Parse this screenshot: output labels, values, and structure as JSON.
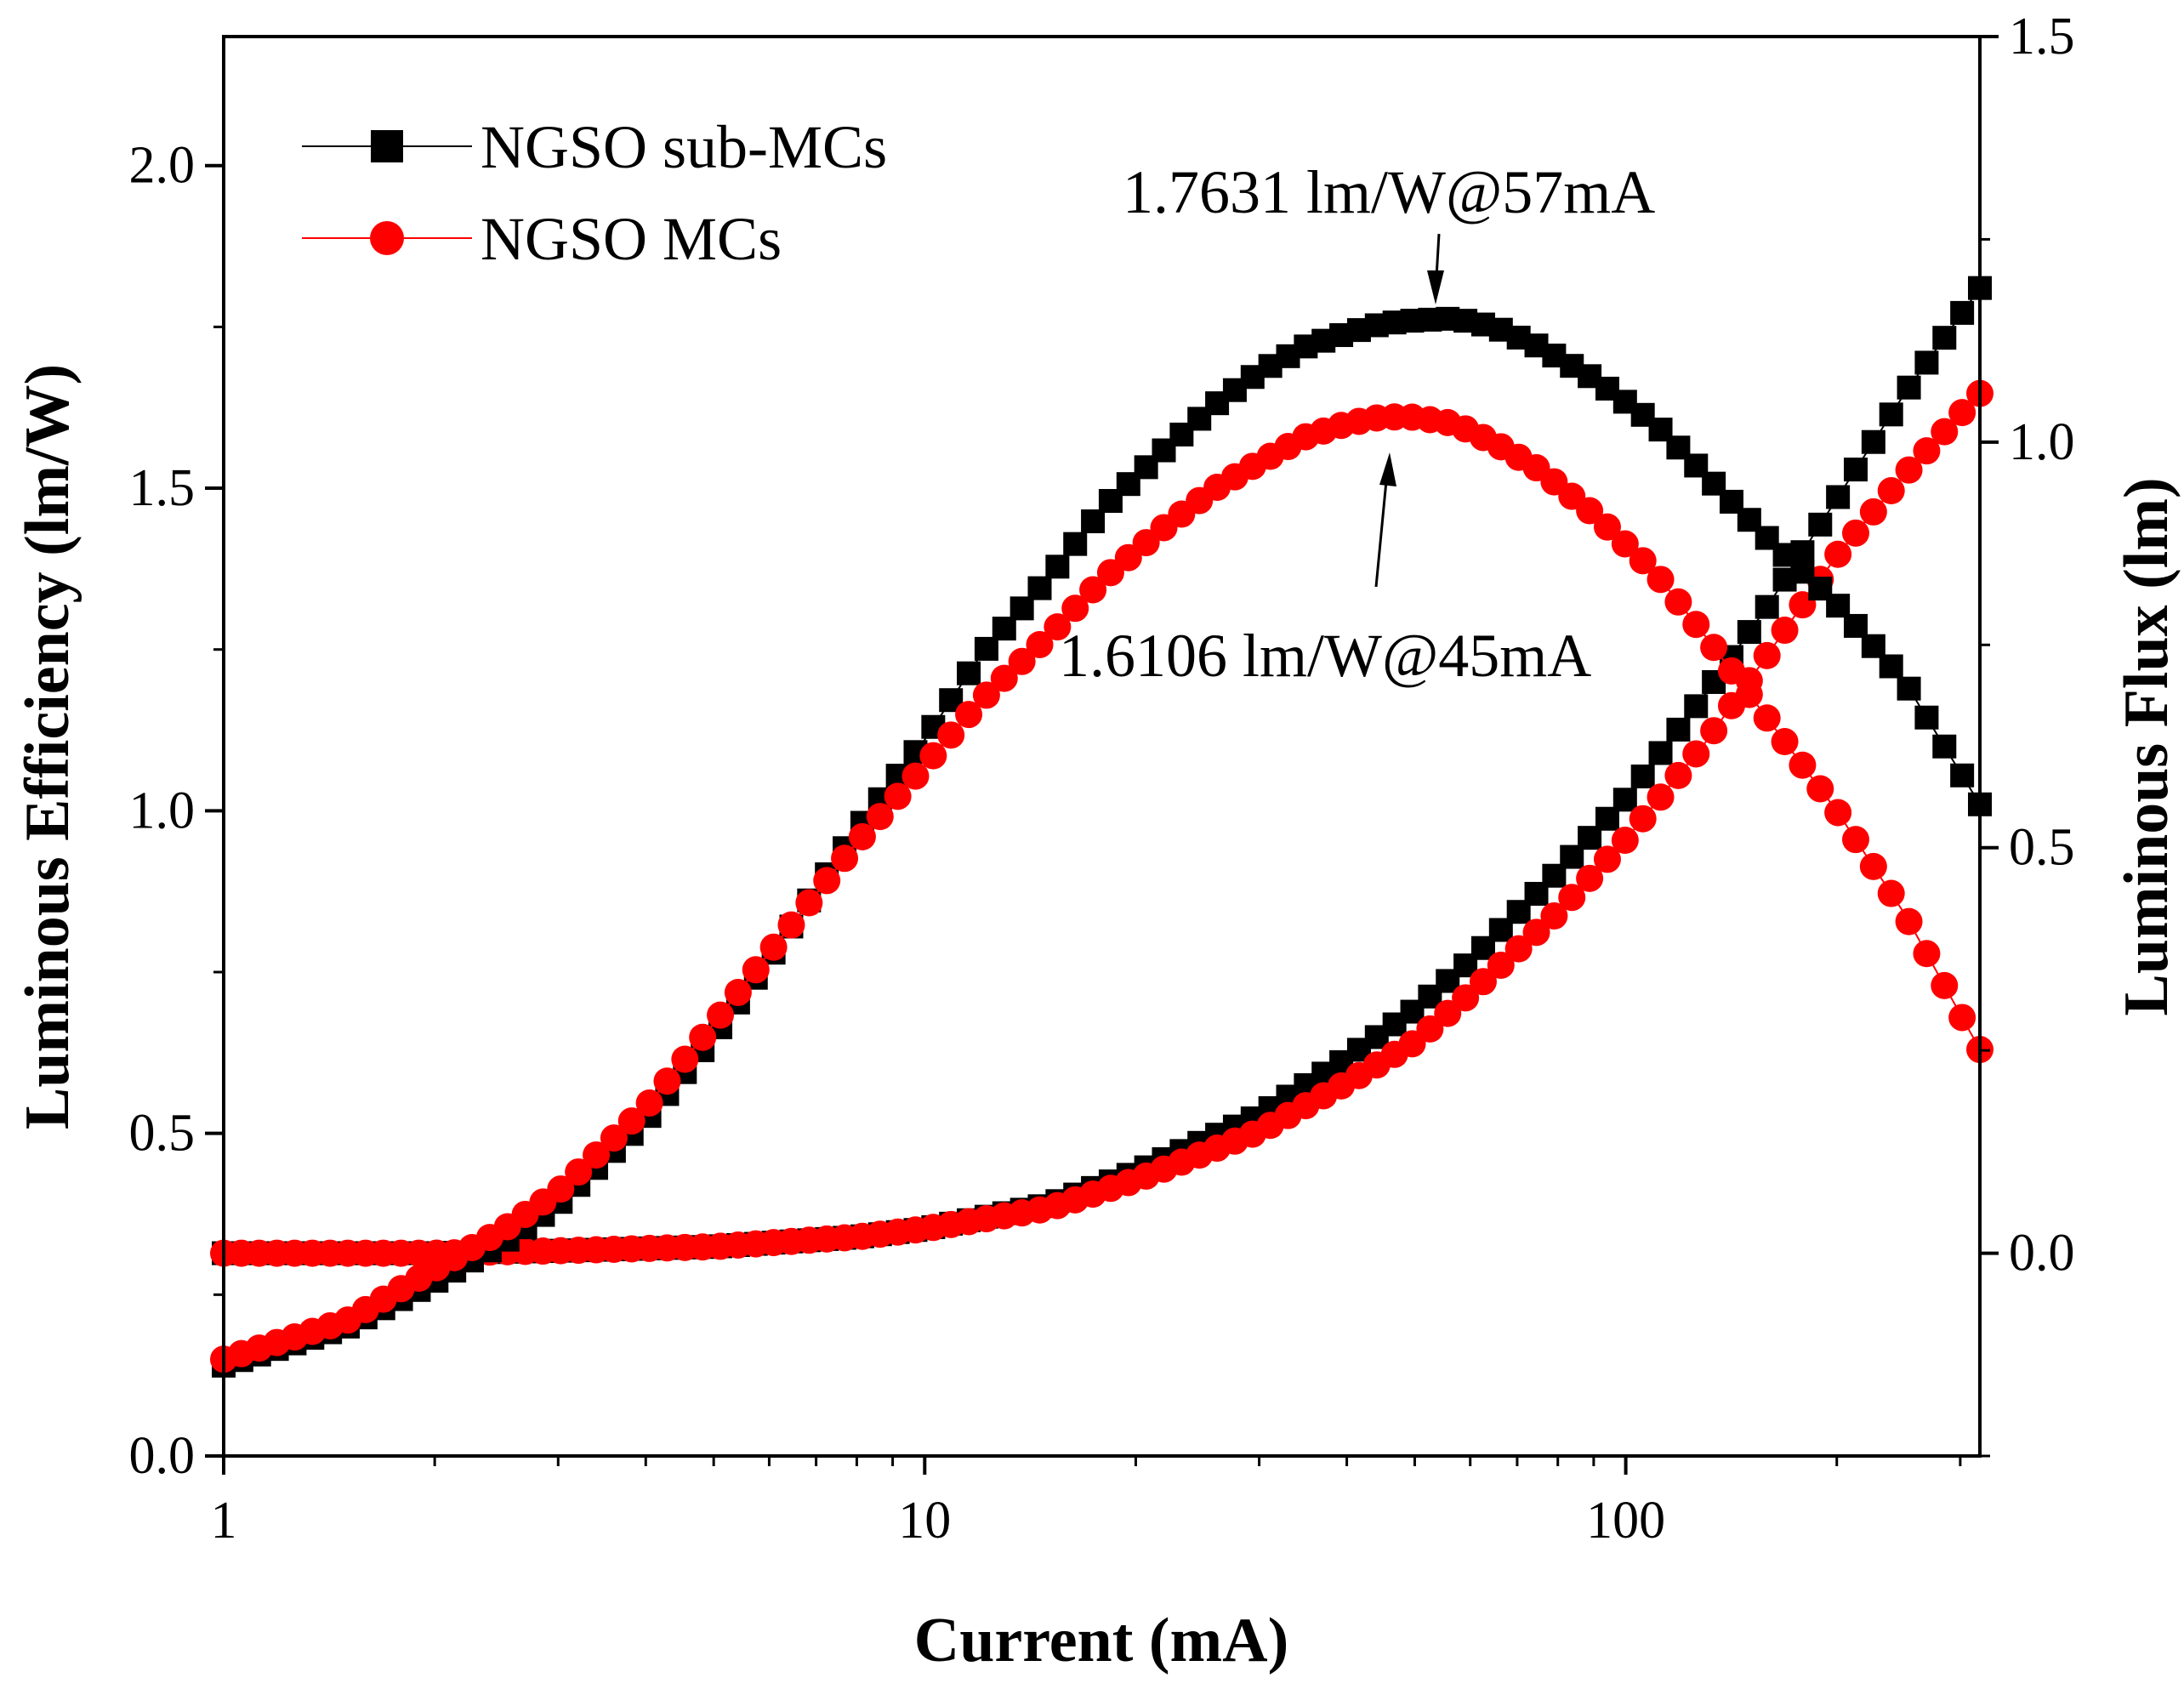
{
  "chart_data": {
    "type": "scatter",
    "xlabel": "Current (mA)",
    "ylabel_left": "Luminous Efficiency (lm/W)",
    "ylabel_right": "Luminous Flux (lm)",
    "x_scale": "log",
    "xlim": [
      1,
      320
    ],
    "ylim_left": [
      0,
      2.2
    ],
    "ylim_right": [
      -0.25,
      1.5
    ],
    "x_ticks": [
      {
        "value": 1,
        "label": "1"
      },
      {
        "value": 10,
        "label": "10"
      },
      {
        "value": 100,
        "label": "100"
      }
    ],
    "y_left_ticks": [
      {
        "value": 0,
        "label": "0.0"
      },
      {
        "value": 0.5,
        "label": "0.5"
      },
      {
        "value": 1.0,
        "label": "1.0"
      },
      {
        "value": 1.5,
        "label": "1.5"
      },
      {
        "value": 2.0,
        "label": "2.0"
      }
    ],
    "y_right_ticks": [
      {
        "value": 0,
        "label": "0.0"
      },
      {
        "value": 0.5,
        "label": "0.5"
      },
      {
        "value": 1.0,
        "label": "1.0"
      },
      {
        "value": 1.5,
        "label": "1.5"
      }
    ],
    "legend_position": "top-left",
    "series": [
      {
        "name": "NGSO sub-MCs",
        "quantity": "efficiency",
        "axis": "left",
        "color": "#000000",
        "marker": "square",
        "x": [
          1,
          1.5,
          2,
          2.5,
          3,
          4,
          5,
          6,
          8,
          10,
          12,
          15,
          18,
          22,
          26,
          30,
          35,
          40,
          45,
          50,
          57,
          65,
          75,
          90,
          110,
          130,
          160,
          200,
          250,
          320
        ],
        "y": [
          0.14,
          0.2,
          0.27,
          0.33,
          0.39,
          0.52,
          0.65,
          0.77,
          0.97,
          1.11,
          1.24,
          1.36,
          1.47,
          1.56,
          1.63,
          1.68,
          1.72,
          1.74,
          1.755,
          1.76,
          1.7631,
          1.75,
          1.72,
          1.67,
          1.6,
          1.52,
          1.42,
          1.32,
          1.2,
          1.01
        ]
      },
      {
        "name": "NGSO MCs",
        "quantity": "efficiency",
        "axis": "left",
        "color": "#ff0000",
        "marker": "circle",
        "x": [
          1,
          1.5,
          2,
          2.5,
          3,
          4,
          5,
          6,
          8,
          10,
          12,
          15,
          18,
          22,
          26,
          30,
          35,
          40,
          45,
          50,
          57,
          65,
          75,
          90,
          110,
          130,
          160,
          200,
          250,
          320
        ],
        "y": [
          0.15,
          0.21,
          0.29,
          0.35,
          0.41,
          0.54,
          0.67,
          0.78,
          0.95,
          1.07,
          1.17,
          1.27,
          1.36,
          1.44,
          1.5,
          1.54,
          1.58,
          1.6,
          1.6106,
          1.61,
          1.6,
          1.57,
          1.53,
          1.46,
          1.37,
          1.27,
          1.14,
          1.0,
          0.84,
          0.63
        ]
      },
      {
        "name": "NGSO sub-MCs",
        "quantity": "flux",
        "axis": "right",
        "color": "#000000",
        "marker": "square",
        "x": [
          1,
          1.5,
          2,
          3,
          5,
          8,
          10,
          15,
          20,
          30,
          40,
          50,
          60,
          80,
          100,
          130,
          160,
          200,
          250,
          320
        ],
        "y": [
          0.0,
          0.0,
          0.0,
          0.003,
          0.008,
          0.02,
          0.03,
          0.06,
          0.1,
          0.17,
          0.24,
          0.3,
          0.36,
          0.47,
          0.56,
          0.69,
          0.8,
          0.93,
          1.06,
          1.19
        ]
      },
      {
        "name": "NGSO MCs",
        "quantity": "flux",
        "axis": "right",
        "color": "#ff0000",
        "marker": "circle",
        "x": [
          1,
          1.5,
          2,
          3,
          5,
          8,
          10,
          15,
          20,
          30,
          40,
          50,
          60,
          80,
          100,
          130,
          160,
          200,
          250,
          320
        ],
        "y": [
          0.0,
          0.0,
          0.0,
          0.003,
          0.008,
          0.02,
          0.03,
          0.055,
          0.09,
          0.15,
          0.21,
          0.26,
          0.32,
          0.42,
          0.51,
          0.63,
          0.74,
          0.86,
          0.96,
          1.06
        ]
      }
    ],
    "annotations": [
      {
        "text": "1.7631 lm/W@57mA",
        "target_x": 57,
        "target_y": 1.7631,
        "series": "NGSO sub-MCs"
      },
      {
        "text": "1.6106 lm/W@45mA",
        "target_x": 45,
        "target_y": 1.6106,
        "series": "NGSO MCs"
      }
    ]
  }
}
